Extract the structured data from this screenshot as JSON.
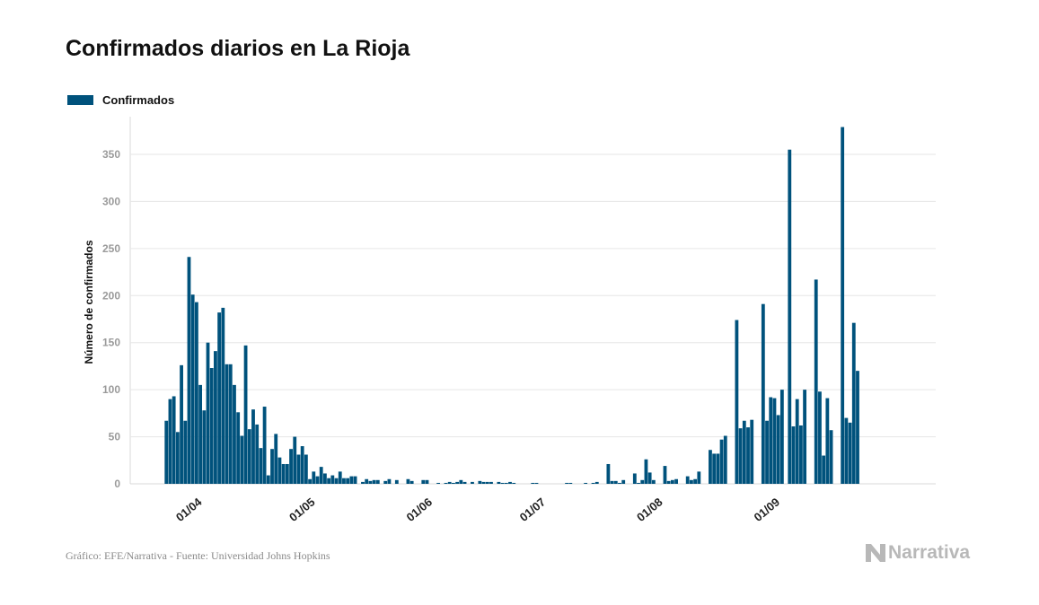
{
  "header": {
    "title": "Confirmados diarios en La Rioja"
  },
  "legend": {
    "label": "Confirmados"
  },
  "colors": {
    "bar": "#00527c",
    "grid": "#e6e6e6",
    "axis": "#d9d9d9"
  },
  "footer": {
    "source": "Gráfico: EFE/Narrativa - Fuente: Universidad Johns Hopkins",
    "brand": "Narrativa",
    "brand_icon": "narrativa-logo-icon"
  },
  "chart_data": {
    "type": "bar",
    "title": "Confirmados diarios en La Rioja",
    "xlabel": "",
    "ylabel": "Número de confirmados",
    "ylim": [
      0,
      390
    ],
    "yticks": [
      0,
      50,
      100,
      150,
      200,
      250,
      300,
      350
    ],
    "grid": true,
    "legend_position": "top-left",
    "x_start": "2020-03-16",
    "x_end": "2020-09-23",
    "xtick_labels": [
      {
        "date": "2020-04-01",
        "label": "01/04"
      },
      {
        "date": "2020-05-01",
        "label": "01/05"
      },
      {
        "date": "2020-06-01",
        "label": "01/06"
      },
      {
        "date": "2020-07-01",
        "label": "01/07"
      },
      {
        "date": "2020-08-01",
        "label": "01/08"
      },
      {
        "date": "2020-09-01",
        "label": "01/09"
      }
    ],
    "series": [
      {
        "name": "Confirmados",
        "values": [
          [
            "2020-03-24",
            67
          ],
          [
            "2020-03-25",
            90
          ],
          [
            "2020-03-26",
            93
          ],
          [
            "2020-03-27",
            55
          ],
          [
            "2020-03-28",
            126
          ],
          [
            "2020-03-29",
            67
          ],
          [
            "2020-03-30",
            241
          ],
          [
            "2020-03-31",
            201
          ],
          [
            "2020-04-01",
            193
          ],
          [
            "2020-04-02",
            105
          ],
          [
            "2020-04-03",
            78
          ],
          [
            "2020-04-04",
            150
          ],
          [
            "2020-04-05",
            123
          ],
          [
            "2020-04-06",
            141
          ],
          [
            "2020-04-07",
            182
          ],
          [
            "2020-04-08",
            187
          ],
          [
            "2020-04-09",
            127
          ],
          [
            "2020-04-10",
            127
          ],
          [
            "2020-04-11",
            105
          ],
          [
            "2020-04-12",
            76
          ],
          [
            "2020-04-13",
            51
          ],
          [
            "2020-04-14",
            147
          ],
          [
            "2020-04-15",
            58
          ],
          [
            "2020-04-16",
            79
          ],
          [
            "2020-04-17",
            63
          ],
          [
            "2020-04-18",
            38
          ],
          [
            "2020-04-19",
            82
          ],
          [
            "2020-04-20",
            9
          ],
          [
            "2020-04-21",
            37
          ],
          [
            "2020-04-22",
            53
          ],
          [
            "2020-04-23",
            28
          ],
          [
            "2020-04-24",
            21
          ],
          [
            "2020-04-25",
            21
          ],
          [
            "2020-04-26",
            37
          ],
          [
            "2020-04-27",
            50
          ],
          [
            "2020-04-28",
            31
          ],
          [
            "2020-04-29",
            40
          ],
          [
            "2020-04-30",
            31
          ],
          [
            "2020-05-01",
            5
          ],
          [
            "2020-05-02",
            13
          ],
          [
            "2020-05-03",
            8
          ],
          [
            "2020-05-04",
            18
          ],
          [
            "2020-05-05",
            11
          ],
          [
            "2020-05-06",
            6
          ],
          [
            "2020-05-07",
            9
          ],
          [
            "2020-05-08",
            6
          ],
          [
            "2020-05-09",
            13
          ],
          [
            "2020-05-10",
            6
          ],
          [
            "2020-05-11",
            6
          ],
          [
            "2020-05-12",
            8
          ],
          [
            "2020-05-13",
            8
          ],
          [
            "2020-05-15",
            2
          ],
          [
            "2020-05-16",
            5
          ],
          [
            "2020-05-17",
            3
          ],
          [
            "2020-05-18",
            4
          ],
          [
            "2020-05-19",
            4
          ],
          [
            "2020-05-21",
            3
          ],
          [
            "2020-05-22",
            5
          ],
          [
            "2020-05-24",
            4
          ],
          [
            "2020-05-27",
            5
          ],
          [
            "2020-05-28",
            3
          ],
          [
            "2020-05-31",
            4
          ],
          [
            "2020-06-01",
            4
          ],
          [
            "2020-06-04",
            1
          ],
          [
            "2020-06-06",
            1
          ],
          [
            "2020-06-07",
            2
          ],
          [
            "2020-06-08",
            1
          ],
          [
            "2020-06-09",
            2
          ],
          [
            "2020-06-10",
            4
          ],
          [
            "2020-06-11",
            2
          ],
          [
            "2020-06-13",
            2
          ],
          [
            "2020-06-15",
            3
          ],
          [
            "2020-06-16",
            2
          ],
          [
            "2020-06-17",
            2
          ],
          [
            "2020-06-18",
            2
          ],
          [
            "2020-06-20",
            2
          ],
          [
            "2020-06-21",
            1
          ],
          [
            "2020-06-22",
            1
          ],
          [
            "2020-06-23",
            2
          ],
          [
            "2020-06-24",
            1
          ],
          [
            "2020-06-29",
            1
          ],
          [
            "2020-06-30",
            1
          ],
          [
            "2020-07-08",
            1
          ],
          [
            "2020-07-09",
            1
          ],
          [
            "2020-07-13",
            1
          ],
          [
            "2020-07-15",
            1
          ],
          [
            "2020-07-16",
            2
          ],
          [
            "2020-07-19",
            21
          ],
          [
            "2020-07-20",
            3
          ],
          [
            "2020-07-21",
            3
          ],
          [
            "2020-07-22",
            1
          ],
          [
            "2020-07-23",
            4
          ],
          [
            "2020-07-26",
            11
          ],
          [
            "2020-07-27",
            1
          ],
          [
            "2020-07-28",
            4
          ],
          [
            "2020-07-29",
            26
          ],
          [
            "2020-07-30",
            12
          ],
          [
            "2020-07-31",
            4
          ],
          [
            "2020-08-03",
            19
          ],
          [
            "2020-08-04",
            3
          ],
          [
            "2020-08-05",
            4
          ],
          [
            "2020-08-06",
            5
          ],
          [
            "2020-08-09",
            8
          ],
          [
            "2020-08-10",
            4
          ],
          [
            "2020-08-11",
            5
          ],
          [
            "2020-08-12",
            13
          ],
          [
            "2020-08-15",
            36
          ],
          [
            "2020-08-16",
            32
          ],
          [
            "2020-08-17",
            32
          ],
          [
            "2020-08-18",
            47
          ],
          [
            "2020-08-19",
            51
          ],
          [
            "2020-08-22",
            174
          ],
          [
            "2020-08-23",
            59
          ],
          [
            "2020-08-24",
            67
          ],
          [
            "2020-08-25",
            60
          ],
          [
            "2020-08-26",
            68
          ],
          [
            "2020-08-29",
            191
          ],
          [
            "2020-08-30",
            67
          ],
          [
            "2020-08-31",
            92
          ],
          [
            "2020-09-01",
            91
          ],
          [
            "2020-09-02",
            73
          ],
          [
            "2020-09-03",
            100
          ],
          [
            "2020-09-05",
            355
          ],
          [
            "2020-09-06",
            61
          ],
          [
            "2020-09-07",
            90
          ],
          [
            "2020-09-08",
            62
          ],
          [
            "2020-09-09",
            100
          ],
          [
            "2020-09-12",
            217
          ],
          [
            "2020-09-13",
            98
          ],
          [
            "2020-09-14",
            30
          ],
          [
            "2020-09-15",
            91
          ],
          [
            "2020-09-16",
            57
          ],
          [
            "2020-09-19",
            379
          ],
          [
            "2020-09-20",
            70
          ],
          [
            "2020-09-21",
            65
          ],
          [
            "2020-09-22",
            171
          ],
          [
            "2020-09-23",
            120
          ]
        ]
      }
    ]
  }
}
